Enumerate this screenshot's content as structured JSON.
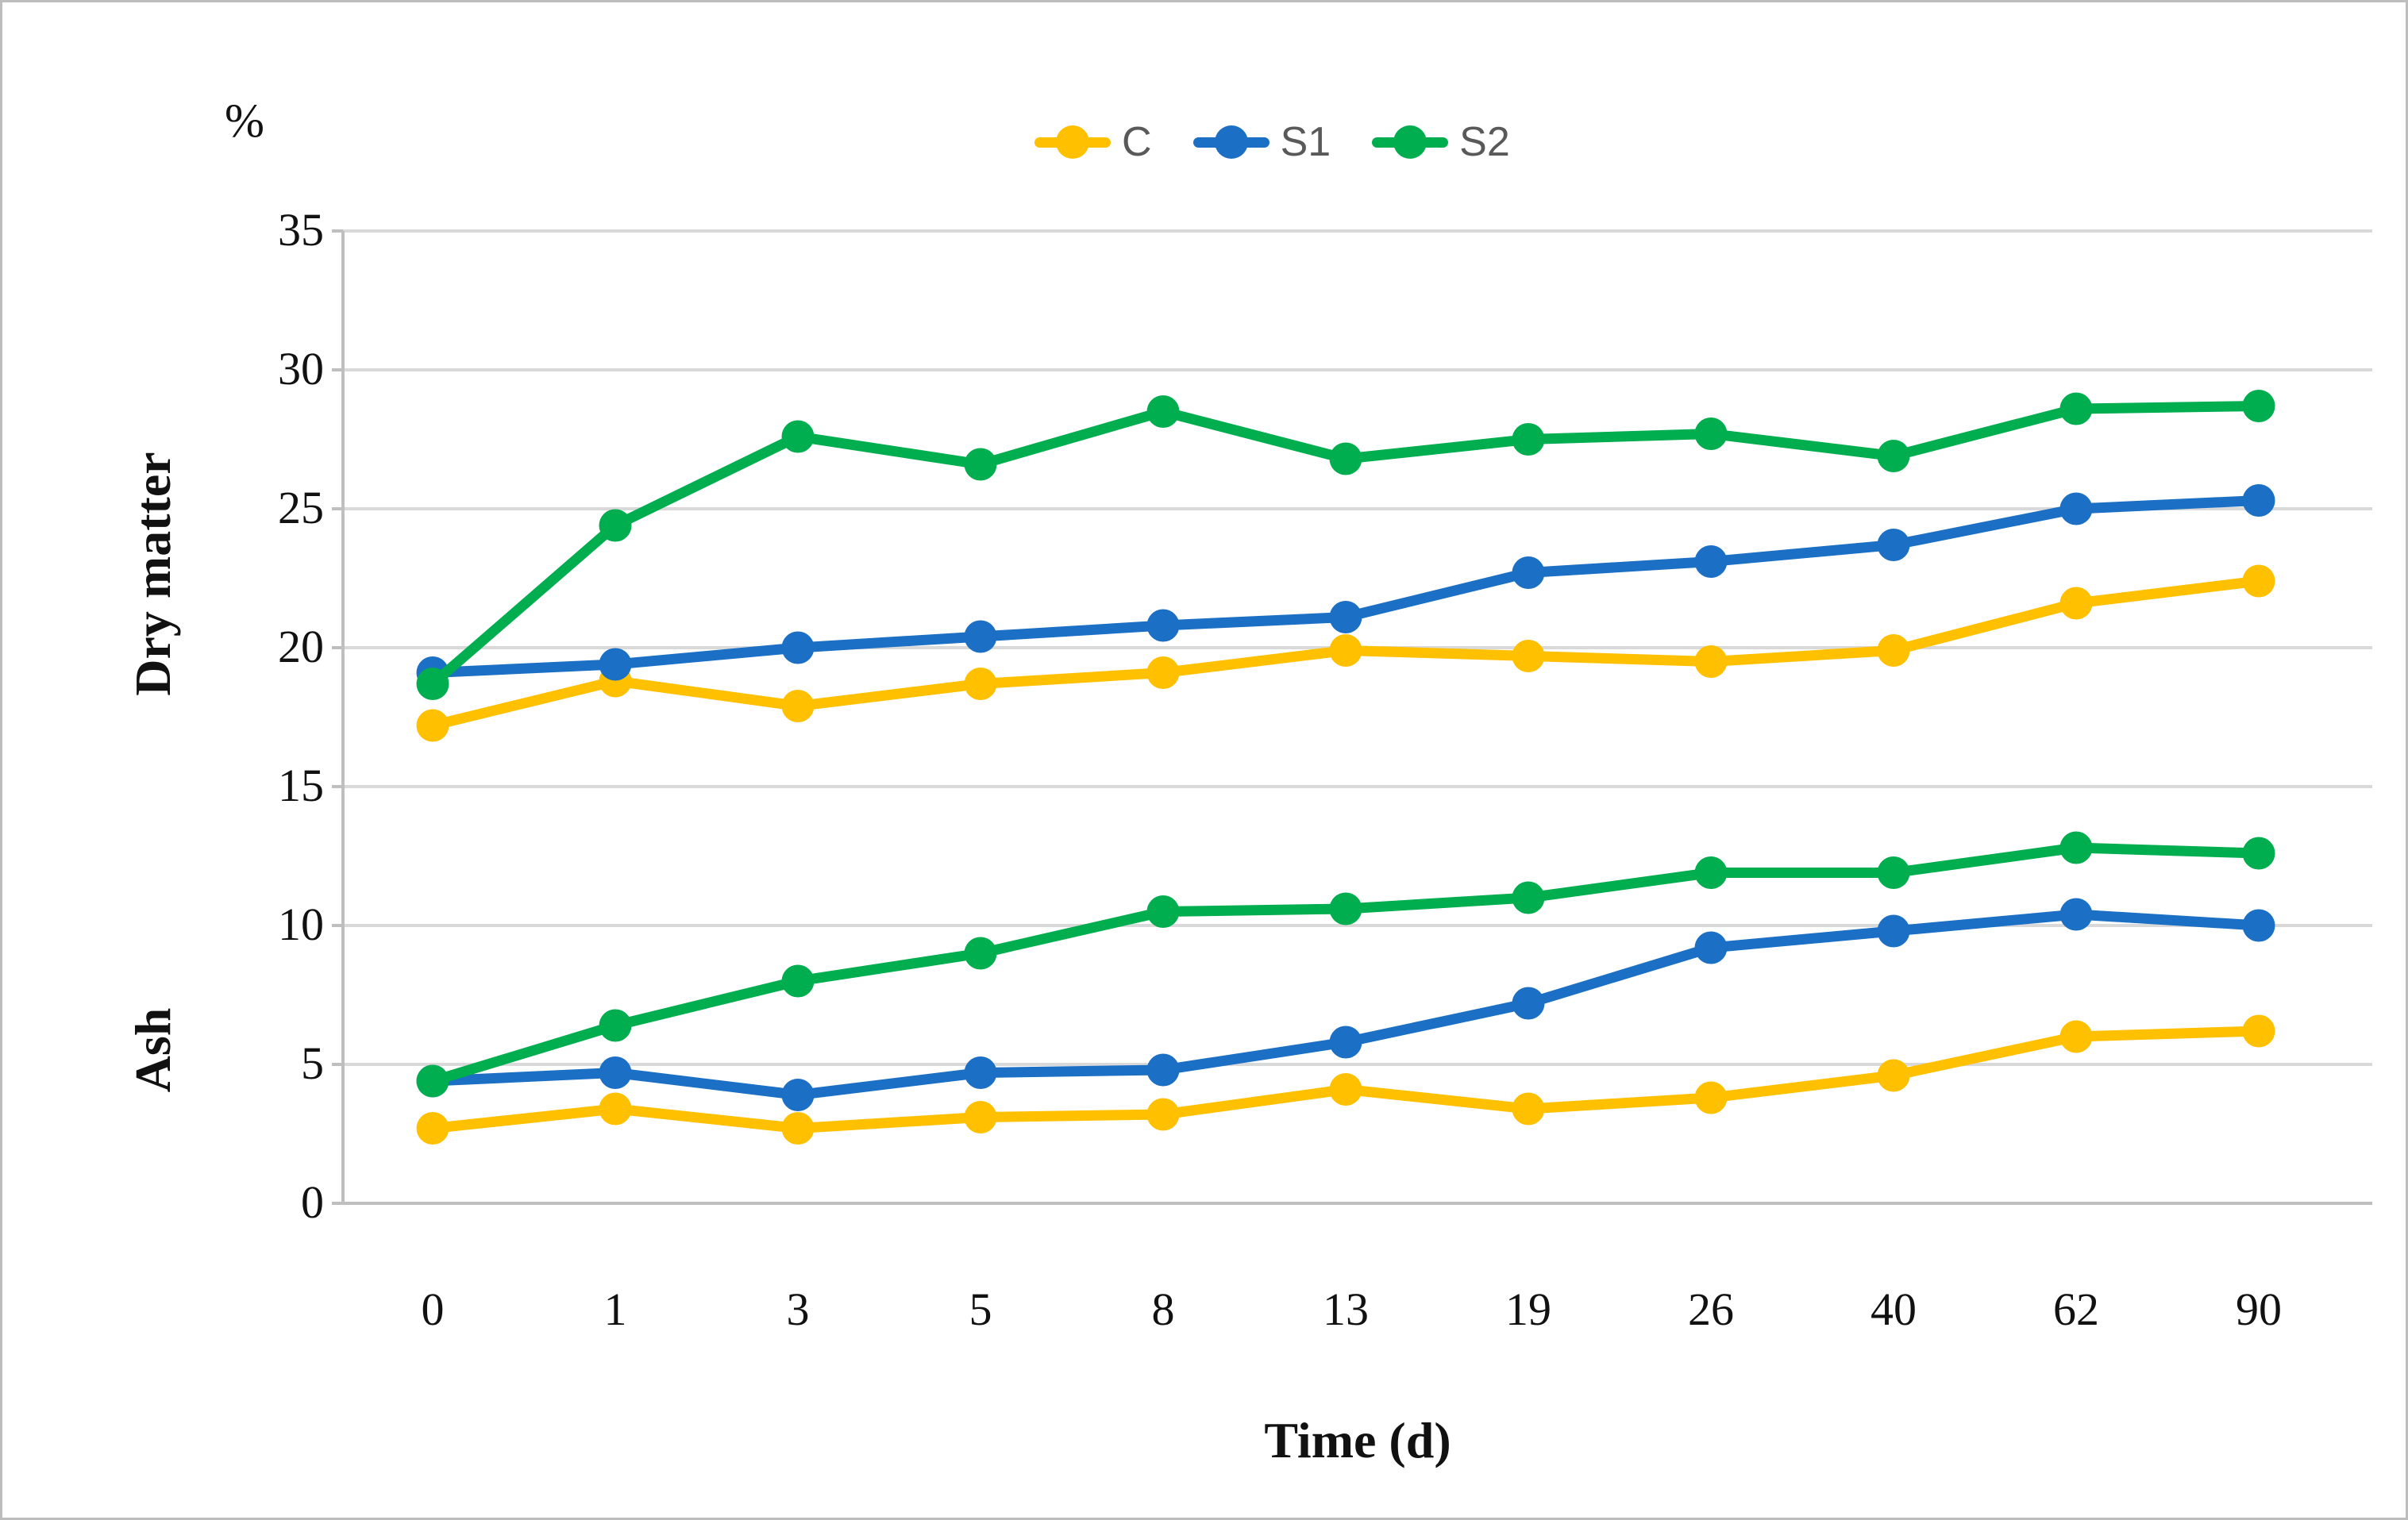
{
  "percent_symbol": "%",
  "group_labels": {
    "top": "Dry matter",
    "bottom": "Ash"
  },
  "x_axis": {
    "title": "Time (d)",
    "categories": [
      "0",
      "1",
      "3",
      "5",
      "8",
      "13",
      "19",
      "26",
      "40",
      "62",
      "90"
    ]
  },
  "y_axis": {
    "ticks": [
      0,
      5,
      10,
      15,
      20,
      25,
      30,
      35
    ],
    "ylim": [
      0,
      35
    ]
  },
  "legend": [
    {
      "label": "C"
    },
    {
      "label": "S1"
    },
    {
      "label": "S2"
    }
  ],
  "colors": {
    "C": "#FFC000",
    "S1": "#1B6FC4",
    "S2": "#00AE4F",
    "gridline": "#D9D9D9",
    "axis": "#BFBFBF",
    "tick_text": "#111111",
    "legend_text": "#595959",
    "border": "#BDBDBD"
  },
  "chart_data": {
    "type": "line",
    "title": "",
    "xlabel": "Time (d)",
    "ylabel": "%",
    "ylim": [
      0,
      35
    ],
    "grid": true,
    "legend_position": "top-center",
    "categories": [
      "0",
      "1",
      "3",
      "5",
      "8",
      "13",
      "19",
      "26",
      "40",
      "62",
      "90"
    ],
    "groups": [
      {
        "name": "Dry matter",
        "series": [
          {
            "name": "C",
            "values": [
              17.2,
              18.8,
              17.9,
              18.7,
              19.1,
              19.9,
              19.7,
              19.5,
              19.9,
              21.6,
              22.4
            ]
          },
          {
            "name": "S1",
            "values": [
              19.1,
              19.4,
              20.0,
              20.4,
              20.8,
              21.1,
              22.7,
              23.1,
              23.7,
              25.0,
              25.3
            ]
          },
          {
            "name": "S2",
            "values": [
              18.7,
              24.4,
              27.6,
              26.6,
              28.5,
              26.8,
              27.5,
              27.7,
              26.9,
              28.6,
              28.7
            ]
          }
        ]
      },
      {
        "name": "Ash",
        "series": [
          {
            "name": "C",
            "values": [
              2.7,
              3.4,
              2.7,
              3.1,
              3.2,
              4.1,
              3.4,
              3.8,
              4.6,
              6.0,
              6.2
            ]
          },
          {
            "name": "S1",
            "values": [
              4.4,
              4.7,
              3.9,
              4.7,
              4.8,
              5.8,
              7.2,
              9.2,
              9.8,
              10.4,
              10.0
            ]
          },
          {
            "name": "S2",
            "values": [
              4.4,
              6.4,
              8.0,
              9.0,
              10.5,
              10.6,
              11.0,
              11.9,
              11.9,
              12.8,
              12.6
            ]
          }
        ]
      }
    ]
  }
}
